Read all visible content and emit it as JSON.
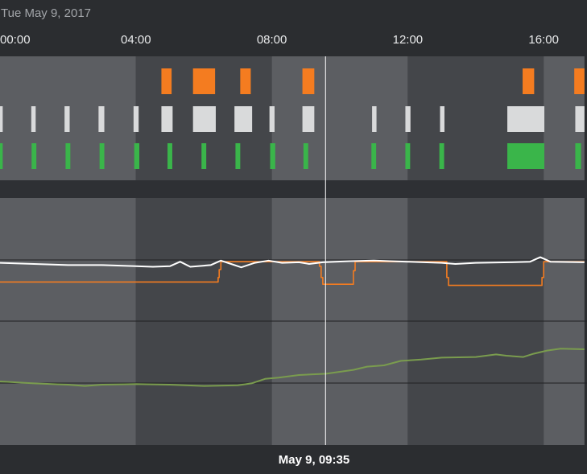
{
  "header": {
    "date": "Tue May 9, 2017"
  },
  "cursor": {
    "label": "May 9, 09:35",
    "hour": 9.58
  },
  "chart_data": {
    "type": "timeline",
    "x_unit": "hour of day",
    "x_range": [
      0,
      17.2
    ],
    "ticks": [
      {
        "hour": 0,
        "label": "00:00"
      },
      {
        "hour": 4,
        "label": "04:00"
      },
      {
        "hour": 8,
        "label": "08:00"
      },
      {
        "hour": 12,
        "label": "12:00"
      },
      {
        "hour": 16,
        "label": "16:00"
      }
    ],
    "shading": [
      {
        "from": 0,
        "to": 4,
        "tone": "light"
      },
      {
        "from": 4,
        "to": 8,
        "tone": "dark"
      },
      {
        "from": 8,
        "to": 12,
        "tone": "light"
      },
      {
        "from": 12,
        "to": 16,
        "tone": "dark"
      },
      {
        "from": 16,
        "to": 17.2,
        "tone": "light"
      }
    ],
    "colors": {
      "band_light": "#5c5e62",
      "band_dark": "#44464a",
      "orange": "#f47c20",
      "white": "#d9dadb",
      "green": "#3ab54a",
      "olive": "#7a9c4e",
      "line_white": "#ffffff"
    },
    "event_rows": [
      {
        "color": "orange",
        "events": [
          [
            4.75,
            5.05
          ],
          [
            5.68,
            6.33
          ],
          [
            7.07,
            7.38
          ],
          [
            8.9,
            9.25
          ],
          [
            15.38,
            15.72
          ],
          [
            16.9,
            17.2
          ]
        ]
      },
      {
        "color": "white",
        "events": [
          [
            0.0,
            0.08
          ],
          [
            0.92,
            1.05
          ],
          [
            1.9,
            2.05
          ],
          [
            2.9,
            3.07
          ],
          [
            3.93,
            4.08
          ],
          [
            4.75,
            5.08
          ],
          [
            5.68,
            6.35
          ],
          [
            6.9,
            7.42
          ],
          [
            7.93,
            8.08
          ],
          [
            8.9,
            9.25
          ],
          [
            10.95,
            11.08
          ],
          [
            11.93,
            12.08
          ],
          [
            12.95,
            13.08
          ],
          [
            14.93,
            16.02
          ],
          [
            16.93,
            17.2
          ]
        ]
      },
      {
        "color": "green",
        "events": [
          [
            0.0,
            0.08
          ],
          [
            0.93,
            1.07
          ],
          [
            1.93,
            2.07
          ],
          [
            2.93,
            3.07
          ],
          [
            3.95,
            4.1
          ],
          [
            4.93,
            5.07
          ],
          [
            5.93,
            6.07
          ],
          [
            6.93,
            7.07
          ],
          [
            7.95,
            8.1
          ],
          [
            8.93,
            9.07
          ],
          [
            10.93,
            11.07
          ],
          [
            11.93,
            12.07
          ],
          [
            12.93,
            13.07
          ],
          [
            14.93,
            16.02
          ],
          [
            16.93,
            17.1
          ]
        ]
      }
    ],
    "series": [
      {
        "color": "orange",
        "style": "step",
        "y_range": [
          0,
          1
        ],
        "points": [
          [
            0,
            0.28
          ],
          [
            6.42,
            0.28
          ],
          [
            6.42,
            0.36
          ],
          [
            6.45,
            0.36
          ],
          [
            6.45,
            0.5
          ],
          [
            6.5,
            0.5
          ],
          [
            6.5,
            0.64
          ],
          [
            9.4,
            0.64
          ],
          [
            9.4,
            0.56
          ],
          [
            9.45,
            0.56
          ],
          [
            9.45,
            0.36
          ],
          [
            9.5,
            0.36
          ],
          [
            9.5,
            0.24
          ],
          [
            10.4,
            0.24
          ],
          [
            10.4,
            0.48
          ],
          [
            10.45,
            0.48
          ],
          [
            10.45,
            0.64
          ],
          [
            13.15,
            0.64
          ],
          [
            13.15,
            0.36
          ],
          [
            13.2,
            0.36
          ],
          [
            13.2,
            0.22
          ],
          [
            15.95,
            0.22
          ],
          [
            15.95,
            0.36
          ],
          [
            16.0,
            0.36
          ],
          [
            16.0,
            0.64
          ],
          [
            17.2,
            0.64
          ]
        ]
      },
      {
        "color": "line_white",
        "style": "line",
        "y_range": [
          0,
          1
        ],
        "points": [
          [
            0,
            0.62
          ],
          [
            1,
            0.6
          ],
          [
            2,
            0.58
          ],
          [
            3,
            0.58
          ],
          [
            4,
            0.56
          ],
          [
            4.5,
            0.55
          ],
          [
            5,
            0.56
          ],
          [
            5.3,
            0.64
          ],
          [
            5.6,
            0.55
          ],
          [
            6.2,
            0.58
          ],
          [
            6.5,
            0.66
          ],
          [
            6.8,
            0.6
          ],
          [
            7.1,
            0.54
          ],
          [
            7.5,
            0.62
          ],
          [
            7.9,
            0.66
          ],
          [
            8.3,
            0.62
          ],
          [
            8.8,
            0.63
          ],
          [
            9.1,
            0.6
          ],
          [
            9.5,
            0.63
          ],
          [
            10.3,
            0.65
          ],
          [
            11,
            0.66
          ],
          [
            12,
            0.64
          ],
          [
            13,
            0.62
          ],
          [
            13.4,
            0.6
          ],
          [
            14,
            0.62
          ],
          [
            15,
            0.63
          ],
          [
            15.6,
            0.64
          ],
          [
            15.9,
            0.72
          ],
          [
            16.2,
            0.64
          ],
          [
            17.2,
            0.63
          ]
        ]
      },
      {
        "color": "olive",
        "style": "line",
        "y_range": [
          0,
          1
        ],
        "points": [
          [
            0,
            0.2
          ],
          [
            1,
            0.17
          ],
          [
            2,
            0.15
          ],
          [
            2.5,
            0.13
          ],
          [
            3,
            0.15
          ],
          [
            4,
            0.16
          ],
          [
            5,
            0.15
          ],
          [
            6,
            0.13
          ],
          [
            7,
            0.14
          ],
          [
            7.4,
            0.17
          ],
          [
            7.8,
            0.24
          ],
          [
            8.2,
            0.26
          ],
          [
            8.8,
            0.3
          ],
          [
            9.6,
            0.32
          ],
          [
            10.4,
            0.38
          ],
          [
            10.8,
            0.43
          ],
          [
            11.3,
            0.45
          ],
          [
            11.8,
            0.52
          ],
          [
            12.4,
            0.54
          ],
          [
            13,
            0.57
          ],
          [
            14,
            0.58
          ],
          [
            14.6,
            0.62
          ],
          [
            14.9,
            0.6
          ],
          [
            15.4,
            0.58
          ],
          [
            15.7,
            0.63
          ],
          [
            16.1,
            0.68
          ],
          [
            16.5,
            0.71
          ],
          [
            17.2,
            0.7
          ]
        ]
      }
    ]
  }
}
